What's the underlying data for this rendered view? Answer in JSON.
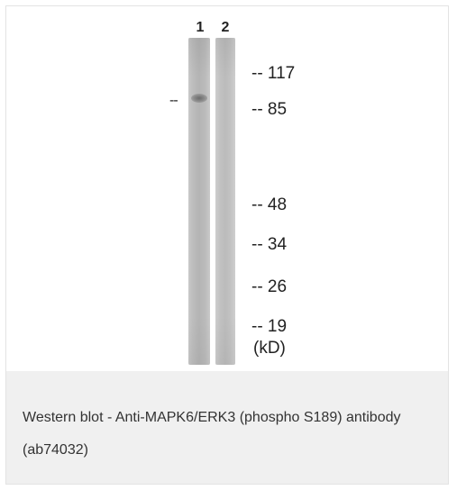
{
  "blot": {
    "lanes": [
      {
        "label": "1"
      },
      {
        "label": "2"
      }
    ],
    "band_marker": "--",
    "markers": [
      {
        "text": "-- 117"
      },
      {
        "text": "-- 85"
      },
      {
        "text": "-- 48"
      },
      {
        "text": "-- 34"
      },
      {
        "text": "-- 26"
      },
      {
        "text": "-- 19"
      }
    ],
    "unit_label": "(kD)"
  },
  "caption": {
    "text": "Western blot - Anti-MAPK6/ERK3 (phospho S189) antibody (ab74032)"
  },
  "colors": {
    "caption_background": "#f0f0f0",
    "border": "#e3e3e3",
    "text": "#333333"
  }
}
